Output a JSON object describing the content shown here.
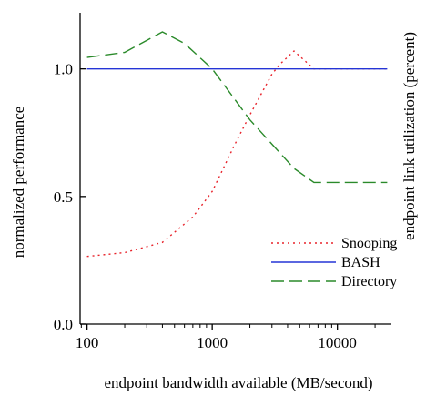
{
  "chart_data": {
    "type": "line",
    "title": "",
    "xlabel": "endpoint bandwidth available (MB/second)",
    "ylabel": "normalized performance",
    "y2label": "endpoint link utilization (percent)",
    "xscale": "log",
    "xlim": [
      88,
      27000
    ],
    "ylim": [
      0,
      1.22
    ],
    "xticks": [
      100,
      1000,
      10000
    ],
    "xtick_labels": [
      "100",
      "1000",
      "10000"
    ],
    "yticks": [
      0,
      0.5,
      1
    ],
    "ytick_labels": [
      "0.0",
      "0.5",
      "1.0"
    ],
    "grid": false,
    "legend_position": "lower-right",
    "series": [
      {
        "name": "Snooping",
        "style": "dotted",
        "color": "#e8242c",
        "x": [
          100,
          200,
          400,
          700,
          1000,
          1500,
          2000,
          3000,
          3500,
          4500,
          5000,
          6500,
          10000,
          25000
        ],
        "y": [
          0.265,
          0.28,
          0.32,
          0.42,
          0.52,
          0.7,
          0.82,
          0.98,
          1.02,
          1.07,
          1.05,
          1.0,
          1.0,
          1.0
        ]
      },
      {
        "name": "BASH",
        "style": "solid",
        "color": "#2535d6",
        "x": [
          100,
          25000
        ],
        "y": [
          1.0,
          1.0
        ]
      },
      {
        "name": "Directory",
        "style": "dashed",
        "color": "#2a8a2a",
        "x": [
          100,
          200,
          400,
          600,
          1000,
          2000,
          4500,
          6500,
          10000,
          25000
        ],
        "y": [
          1.045,
          1.065,
          1.145,
          1.1,
          1.0,
          0.8,
          0.61,
          0.555,
          0.555,
          0.555
        ]
      }
    ]
  }
}
